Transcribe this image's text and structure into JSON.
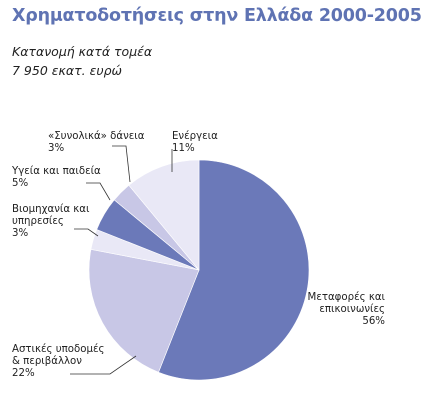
{
  "title": "Χρηματοδοτήσεις στην Ελλάδα 2000-2005",
  "subtitle_line1": "Κατανομή κατά τομέα",
  "subtitle_line2": "7 950 εκατ. ευρώ",
  "chart_data": {
    "type": "pie",
    "slices": [
      {
        "label_lines": [
          "Μεταφορές και",
          "επικοινωνίες"
        ],
        "value_text": "56%",
        "value": 56,
        "color": "#6b79b9"
      },
      {
        "label_lines": [
          "Αστικές υποδομές",
          "& περιβάλλον"
        ],
        "value_text": "22%",
        "value": 22,
        "color": "#c8c7e6"
      },
      {
        "label_lines": [
          "Βιομηχανία και",
          "υπηρεσίες"
        ],
        "value_text": "3%",
        "value": 3,
        "color": "#e9e8f6"
      },
      {
        "label_lines": [
          "Υγεία και παιδεία"
        ],
        "value_text": "5%",
        "value": 5,
        "color": "#6b79b9"
      },
      {
        "label_lines": [
          "«Συνολικά» δάνεια"
        ],
        "value_text": "3%",
        "value": 3,
        "color": "#c8c7e6"
      },
      {
        "label_lines": [
          "Ενέργεια"
        ],
        "value_text": "11%",
        "value": 11,
        "color": "#e9e8f6"
      }
    ]
  }
}
